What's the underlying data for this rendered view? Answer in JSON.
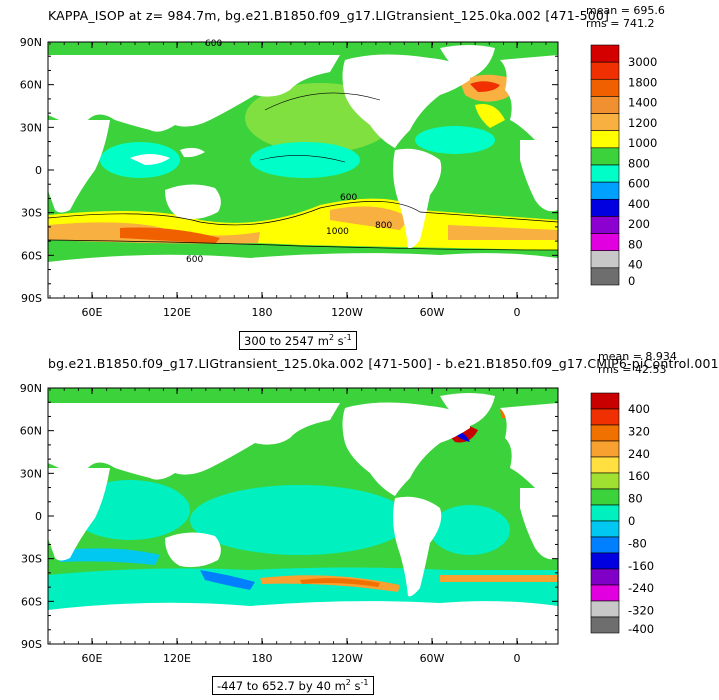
{
  "panels": [
    {
      "title": "KAPPA_ISOP at z= 984.7m, bg.e21.B1850.f09_g17.LIGtransient_125.0ka.002 [471-500]",
      "mean": "mean = 695.6",
      "rms": "rms = 741.2",
      "range_text": "300 to 2547 m",
      "range_unit_exp": "2",
      "range_suffix": " s",
      "range_suffix_exp": "-1",
      "colorbar": [
        "3000",
        "1800",
        "1400",
        "1200",
        "1000",
        "800",
        "600",
        "400",
        "200",
        "80",
        "40",
        "0"
      ],
      "colorbar_colors": [
        "#d40000",
        "#f03000",
        "#f06000",
        "#f09030",
        "#f8b040",
        "#ffff00",
        "#3cd23c",
        "#00ffc8",
        "#00a0ff",
        "#0000e0",
        "#8c00d0",
        "#e000e0",
        "#c8c8c8",
        "#6e6e6e"
      ],
      "contour_labels": [
        "600",
        "1000",
        "800",
        "600",
        "600"
      ]
    },
    {
      "title": "bg.e21.B1850.f09_g17.LIGtransient_125.0ka.002 [471-500] - b.e21.B1850.f09_g17.CMIP6-piControl.001",
      "mean": "mean = 8.934",
      "rms": "rms = 42.53",
      "range_text": "-447 to 652.7 by 40 m",
      "range_unit_exp": "2",
      "range_suffix": " s",
      "range_suffix_exp": "-1",
      "colorbar": [
        "400",
        "320",
        "240",
        "160",
        "80",
        "0",
        "-80",
        "-160",
        "-240",
        "-320",
        "-400"
      ],
      "colorbar_colors": [
        "#c80000",
        "#f03000",
        "#f07000",
        "#f8a030",
        "#ffe040",
        "#a0e030",
        "#3cd23c",
        "#00f0c0",
        "#00c8f0",
        "#0080ff",
        "#0000e0",
        "#8000c8",
        "#e000e0",
        "#c8c8c8",
        "#6e6e6e"
      ]
    }
  ],
  "axes": {
    "lat_ticks": [
      "90N",
      "60N",
      "30N",
      "0",
      "30S",
      "60S",
      "90S"
    ],
    "lon_ticks": [
      "60E",
      "120E",
      "180",
      "120W",
      "60W",
      "0"
    ]
  },
  "chart_data": [
    {
      "type": "heatmap",
      "title": "KAPPA_ISOP at z= 984.7m, bg.e21.B1850.f09_g17.LIGtransient_125.0ka.002 [471-500]",
      "xlabel": "",
      "ylabel": "",
      "x_ticks": [
        "60E",
        "120E",
        "180",
        "120W",
        "60W",
        "0"
      ],
      "y_ticks": [
        "90N",
        "60N",
        "30N",
        "0",
        "30S",
        "60S",
        "90S"
      ],
      "colorbar_levels": [
        0,
        40,
        80,
        200,
        400,
        600,
        800,
        1000,
        1200,
        1400,
        1800,
        3000
      ],
      "field_range": [
        300,
        2547
      ],
      "units": "m^2 s^-1",
      "mean": 695.6,
      "rms": 741.2
    },
    {
      "type": "heatmap",
      "title": "bg.e21.B1850.f09_g17.LIGtransient_125.0ka.002 [471-500] - b.e21.B1850.f09_g17.CMIP6-piControl.001",
      "xlabel": "",
      "ylabel": "",
      "x_ticks": [
        "60E",
        "120E",
        "180",
        "120W",
        "60W",
        "0"
      ],
      "y_ticks": [
        "90N",
        "60N",
        "30N",
        "0",
        "30S",
        "60S",
        "90S"
      ],
      "colorbar_levels": [
        -400,
        -320,
        -240,
        -160,
        -80,
        0,
        80,
        160,
        240,
        320,
        400
      ],
      "field_range": [
        -447,
        652.7
      ],
      "interval": 40,
      "units": "m^2 s^-1",
      "mean": 8.934,
      "rms": 42.53
    }
  ]
}
